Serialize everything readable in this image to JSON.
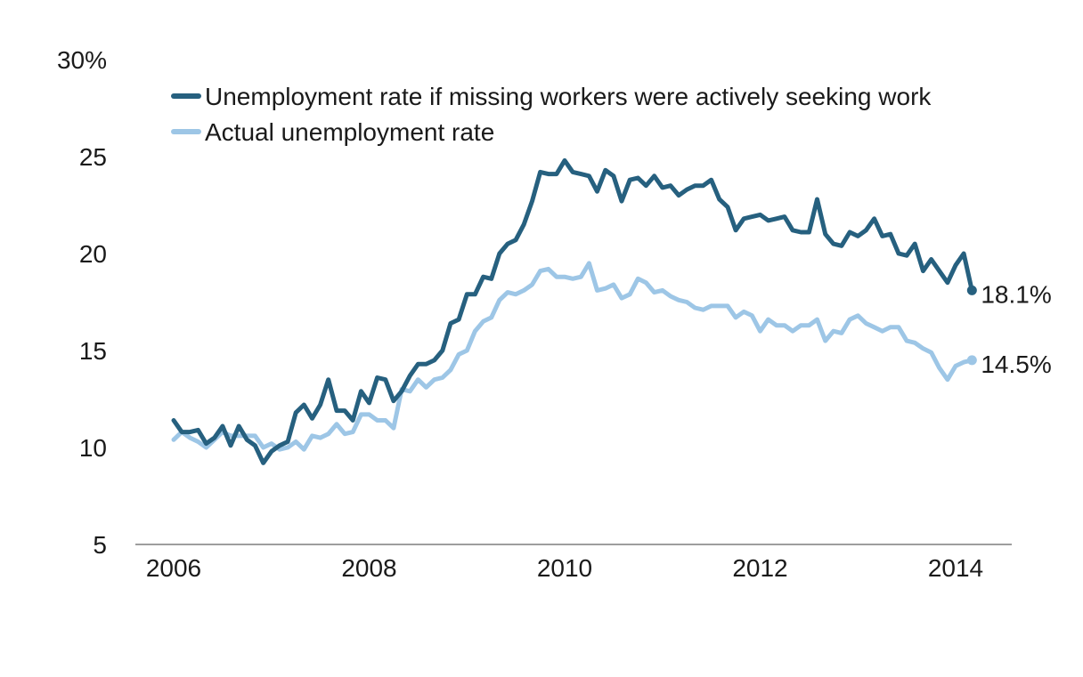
{
  "chart_data": {
    "type": "line",
    "title": "",
    "xlabel": "",
    "ylabel": "",
    "ylim": [
      5,
      30
    ],
    "xlim": [
      2005.6,
      2014.6
    ],
    "y_ticks": [
      5,
      10,
      15,
      20,
      25,
      30
    ],
    "y_tick_labels": [
      "5",
      "10",
      "15",
      "20",
      "25",
      "30%"
    ],
    "x_ticks": [
      2006,
      2008,
      2010,
      2012,
      2014
    ],
    "x_tick_labels": [
      "2006",
      "2008",
      "2010",
      "2012",
      "2014"
    ],
    "grid": false,
    "legend_placement": "top",
    "series": [
      {
        "name": "Unemployment rate if missing workers were actively seeking work",
        "color": "#26607f",
        "end_label": "18.1%",
        "x": [
          2006.0,
          2006.083,
          2006.167,
          2006.25,
          2006.333,
          2006.417,
          2006.5,
          2006.583,
          2006.667,
          2006.75,
          2006.833,
          2006.917,
          2007.0,
          2007.083,
          2007.167,
          2007.25,
          2007.333,
          2007.417,
          2007.5,
          2007.583,
          2007.667,
          2007.75,
          2007.833,
          2007.917,
          2008.0,
          2008.083,
          2008.167,
          2008.25,
          2008.333,
          2008.417,
          2008.5,
          2008.583,
          2008.667,
          2008.75,
          2008.833,
          2008.917,
          2009.0,
          2009.083,
          2009.167,
          2009.25,
          2009.333,
          2009.417,
          2009.5,
          2009.583,
          2009.667,
          2009.75,
          2009.833,
          2009.917,
          2010.0,
          2010.083,
          2010.167,
          2010.25,
          2010.333,
          2010.417,
          2010.5,
          2010.583,
          2010.667,
          2010.75,
          2010.833,
          2010.917,
          2011.0,
          2011.083,
          2011.167,
          2011.25,
          2011.333,
          2011.417,
          2011.5,
          2011.583,
          2011.667,
          2011.75,
          2011.833,
          2011.917,
          2012.0,
          2012.083,
          2012.167,
          2012.25,
          2012.333,
          2012.417,
          2012.5,
          2012.583,
          2012.667,
          2012.75,
          2012.833,
          2012.917,
          2013.0,
          2013.083,
          2013.167,
          2013.25,
          2013.333,
          2013.417,
          2013.5,
          2013.583,
          2013.667,
          2013.75,
          2013.833,
          2013.917,
          2014.0,
          2014.083,
          2014.167
        ],
        "values": [
          11.4,
          10.8,
          10.8,
          10.9,
          10.2,
          10.5,
          11.1,
          10.1,
          11.1,
          10.4,
          10.1,
          9.2,
          9.8,
          10.1,
          10.3,
          11.8,
          12.2,
          11.5,
          12.2,
          13.5,
          11.9,
          11.9,
          11.4,
          12.9,
          12.3,
          13.6,
          13.5,
          12.4,
          12.9,
          13.7,
          14.3,
          14.3,
          14.5,
          15.0,
          16.4,
          16.6,
          17.9,
          17.9,
          18.8,
          18.7,
          20.0,
          20.5,
          20.7,
          21.5,
          22.7,
          24.2,
          24.1,
          24.1,
          24.8,
          24.2,
          24.1,
          24.0,
          23.2,
          24.3,
          24.0,
          22.7,
          23.8,
          23.9,
          23.5,
          24.0,
          23.4,
          23.5,
          23.0,
          23.3,
          23.5,
          23.5,
          23.8,
          22.8,
          22.4,
          21.2,
          21.8,
          21.9,
          22.0,
          21.7,
          21.8,
          21.9,
          21.2,
          21.1,
          21.1,
          22.8,
          21.0,
          20.5,
          20.4,
          21.1,
          20.9,
          21.2,
          21.8,
          20.9,
          21.0,
          20.0,
          19.9,
          20.5,
          19.1,
          19.7,
          19.1,
          18.5,
          19.4,
          20.0,
          18.1
        ]
      },
      {
        "name": "Actual unemployment rate",
        "color": "#9dc6e6",
        "end_label": "14.5%",
        "x": [
          2006.0,
          2006.083,
          2006.167,
          2006.25,
          2006.333,
          2006.417,
          2006.5,
          2006.583,
          2006.667,
          2006.75,
          2006.833,
          2006.917,
          2007.0,
          2007.083,
          2007.167,
          2007.25,
          2007.333,
          2007.417,
          2007.5,
          2007.583,
          2007.667,
          2007.75,
          2007.833,
          2007.917,
          2008.0,
          2008.083,
          2008.167,
          2008.25,
          2008.333,
          2008.417,
          2008.5,
          2008.583,
          2008.667,
          2008.75,
          2008.833,
          2008.917,
          2009.0,
          2009.083,
          2009.167,
          2009.25,
          2009.333,
          2009.417,
          2009.5,
          2009.583,
          2009.667,
          2009.75,
          2009.833,
          2009.917,
          2010.0,
          2010.083,
          2010.167,
          2010.25,
          2010.333,
          2010.417,
          2010.5,
          2010.583,
          2010.667,
          2010.75,
          2010.833,
          2010.917,
          2011.0,
          2011.083,
          2011.167,
          2011.25,
          2011.333,
          2011.417,
          2011.5,
          2011.583,
          2011.667,
          2011.75,
          2011.833,
          2011.917,
          2012.0,
          2012.083,
          2012.167,
          2012.25,
          2012.333,
          2012.417,
          2012.5,
          2012.583,
          2012.667,
          2012.75,
          2012.833,
          2012.917,
          2013.0,
          2013.083,
          2013.167,
          2013.25,
          2013.333,
          2013.417,
          2013.5,
          2013.583,
          2013.667,
          2013.75,
          2013.833,
          2013.917,
          2014.0,
          2014.083,
          2014.167
        ],
        "values": [
          10.4,
          10.8,
          10.5,
          10.3,
          10.0,
          10.4,
          10.8,
          10.6,
          10.6,
          10.6,
          10.6,
          10.0,
          10.2,
          9.9,
          10.0,
          10.3,
          9.9,
          10.6,
          10.5,
          10.7,
          11.2,
          10.7,
          10.8,
          11.7,
          11.7,
          11.4,
          11.4,
          11.0,
          13.0,
          12.9,
          13.5,
          13.1,
          13.5,
          13.6,
          14.0,
          14.8,
          15.0,
          16.0,
          16.5,
          16.7,
          17.6,
          18.0,
          17.9,
          18.1,
          18.4,
          19.1,
          19.2,
          18.8,
          18.8,
          18.7,
          18.8,
          19.5,
          18.1,
          18.2,
          18.4,
          17.7,
          17.9,
          18.7,
          18.5,
          18.0,
          18.1,
          17.8,
          17.6,
          17.5,
          17.2,
          17.1,
          17.3,
          17.3,
          17.3,
          16.7,
          17.0,
          16.8,
          16.0,
          16.6,
          16.3,
          16.3,
          16.0,
          16.3,
          16.3,
          16.6,
          15.5,
          16.0,
          15.9,
          16.6,
          16.8,
          16.4,
          16.2,
          16.0,
          16.2,
          16.2,
          15.5,
          15.4,
          15.1,
          14.9,
          14.1,
          13.5,
          14.2,
          14.4,
          14.5
        ]
      }
    ]
  }
}
